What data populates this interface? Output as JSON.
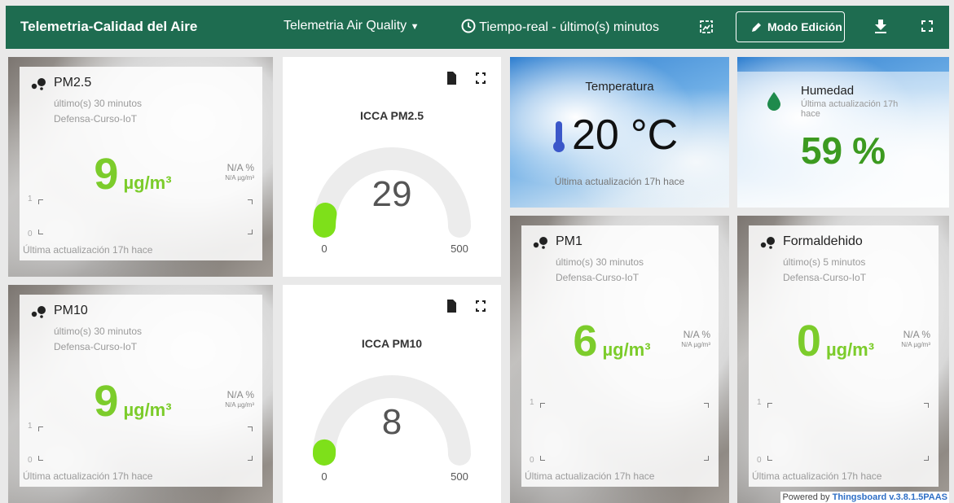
{
  "header": {
    "title": "Telemetria-Calidad del Aire",
    "dashboard": "Telemetria Air Quality",
    "timewindow": "Tiempo-real - último(s) minutos",
    "edit_button": "Modo Edición"
  },
  "value_cards": [
    {
      "title": "PM2.5",
      "period": "último(s) 30 minutos",
      "device": "Defensa-Curso-IoT",
      "value": 9,
      "unit": "µg/m³",
      "delta_percent": "N/A %",
      "delta_value": "N/A µg/m³",
      "axis_ticks": [
        1,
        0
      ],
      "updated": "Última actualización 17h hace"
    },
    {
      "title": "PM10",
      "period": "último(s) 30 minutos",
      "device": "Defensa-Curso-IoT",
      "value": 9,
      "unit": "µg/m³",
      "delta_percent": "N/A %",
      "delta_value": "N/A µg/m³",
      "axis_ticks": [
        1,
        0
      ],
      "updated": "Última actualización 17h hace"
    },
    {
      "title": "PM1",
      "period": "último(s) 30 minutos",
      "device": "Defensa-Curso-IoT",
      "value": 6,
      "unit": "µg/m³",
      "delta_percent": "N/A %",
      "delta_value": "N/A µg/m³",
      "axis_ticks": [
        1,
        0
      ],
      "updated": "Última actualización 17h hace"
    },
    {
      "title": "Formaldehido",
      "period": "último(s) 5 minutos",
      "device": "Defensa-Curso-IoT",
      "value": 0,
      "unit": "µg/m³",
      "delta_percent": "N/A %",
      "delta_value": "N/A µg/m³",
      "axis_ticks": [
        1,
        0
      ],
      "updated": "Última actualización 17h hace"
    }
  ],
  "gauges": [
    {
      "title": "ICCA PM2.5",
      "value": 29,
      "min": 0,
      "max": 500
    },
    {
      "title": "ICCA PM10",
      "value": 8,
      "min": 0,
      "max": 500
    }
  ],
  "temperature": {
    "title": "Temperatura",
    "value": 20,
    "unit": "°C",
    "updated": "Última actualización 17h hace"
  },
  "humidity": {
    "title": "Humedad",
    "updated": "Última actualización 17h hace",
    "value": 59,
    "unit": "%"
  },
  "footer": {
    "prefix": "Powered by",
    "link": "Thingsboard v.3.8.1.5PAAS"
  }
}
